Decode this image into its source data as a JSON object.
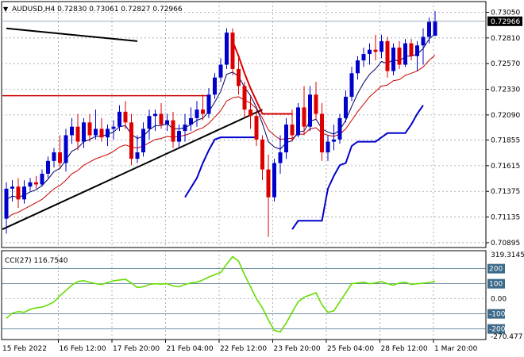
{
  "header": {
    "symbol_line": "AUDUSD,H4  0.72830 0.73061 0.72827 0.72966",
    "cci_label": "CCI(27) 116.7540"
  },
  "colors": {
    "bull": "#0000cc",
    "bear": "#dd0000",
    "grid": "#9aa0a6",
    "ma_fast": "#000066",
    "ma_slow": "#cc0000",
    "sar_blue": "#0000cc",
    "sar_red": "#dd0000",
    "trendline": "#000000",
    "horizontal_line": "#cc0000",
    "cci_line": "#66dd00",
    "cci_level": "#3d6a8a",
    "price_tag_bg": "#000000",
    "price_tag_text": "#ffffff"
  },
  "chart_data": [
    {
      "type": "candlestick",
      "title": "AUDUSD,H4",
      "ylim": [
        0.7085,
        0.7315
      ],
      "y_ticks": [
        0.7305,
        0.7281,
        0.7257,
        0.7233,
        0.7209,
        0.71855,
        0.71615,
        0.71375,
        0.71135,
        0.70895
      ],
      "y_tick_labels": [
        "0.73050",
        "0.72810",
        "0.72570",
        "0.72330",
        "0.72090",
        "0.71855",
        "0.71615",
        "0.71375",
        "0.71135",
        "0.70895"
      ],
      "current_price_label": "0.72966",
      "current_price": 0.72966,
      "x_labels": [
        "15 Feb 2022",
        "16 Feb 12:00",
        "17 Feb 20:00",
        "21 Feb 04:00",
        "22 Feb 12:00",
        "23 Feb 20:00",
        "25 Feb 04:00",
        "28 Feb 12:00",
        "1 Mar 20:00"
      ],
      "x_label_bars": [
        0,
        9,
        18,
        27,
        36,
        45,
        54,
        63,
        72
      ],
      "grid": true,
      "candles": [
        {
          "o": 0.7112,
          "h": 0.7146,
          "l": 0.7098,
          "c": 0.714
        },
        {
          "o": 0.714,
          "h": 0.7148,
          "l": 0.7128,
          "c": 0.7142
        },
        {
          "o": 0.7142,
          "h": 0.715,
          "l": 0.7122,
          "c": 0.713
        },
        {
          "o": 0.713,
          "h": 0.7148,
          "l": 0.7126,
          "c": 0.7142
        },
        {
          "o": 0.7142,
          "h": 0.715,
          "l": 0.7138,
          "c": 0.7146
        },
        {
          "o": 0.7146,
          "h": 0.7152,
          "l": 0.714,
          "c": 0.7144
        },
        {
          "o": 0.7144,
          "h": 0.7158,
          "l": 0.7142,
          "c": 0.7154
        },
        {
          "o": 0.7154,
          "h": 0.717,
          "l": 0.715,
          "c": 0.7166
        },
        {
          "o": 0.7166,
          "h": 0.7178,
          "l": 0.716,
          "c": 0.7174
        },
        {
          "o": 0.7174,
          "h": 0.719,
          "l": 0.7158,
          "c": 0.7164
        },
        {
          "o": 0.7164,
          "h": 0.7196,
          "l": 0.7156,
          "c": 0.719
        },
        {
          "o": 0.719,
          "h": 0.7206,
          "l": 0.7182,
          "c": 0.7198
        },
        {
          "o": 0.7198,
          "h": 0.721,
          "l": 0.7176,
          "c": 0.7184
        },
        {
          "o": 0.7184,
          "h": 0.7206,
          "l": 0.7178,
          "c": 0.7202
        },
        {
          "o": 0.7202,
          "h": 0.721,
          "l": 0.7184,
          "c": 0.719
        },
        {
          "o": 0.719,
          "h": 0.7214,
          "l": 0.7186,
          "c": 0.7196
        },
        {
          "o": 0.7196,
          "h": 0.7206,
          "l": 0.7184,
          "c": 0.7188
        },
        {
          "o": 0.7188,
          "h": 0.72,
          "l": 0.718,
          "c": 0.7196
        },
        {
          "o": 0.7196,
          "h": 0.7204,
          "l": 0.7186,
          "c": 0.7198
        },
        {
          "o": 0.7198,
          "h": 0.7218,
          "l": 0.7194,
          "c": 0.7212
        },
        {
          "o": 0.7212,
          "h": 0.7222,
          "l": 0.7196,
          "c": 0.7202
        },
        {
          "o": 0.7202,
          "h": 0.721,
          "l": 0.7162,
          "c": 0.7168
        },
        {
          "o": 0.7168,
          "h": 0.719,
          "l": 0.7164,
          "c": 0.7174
        },
        {
          "o": 0.7174,
          "h": 0.7202,
          "l": 0.717,
          "c": 0.7196
        },
        {
          "o": 0.7196,
          "h": 0.7214,
          "l": 0.7186,
          "c": 0.7208
        },
        {
          "o": 0.7208,
          "h": 0.7214,
          "l": 0.7194,
          "c": 0.721
        },
        {
          "o": 0.721,
          "h": 0.722,
          "l": 0.7196,
          "c": 0.72
        },
        {
          "o": 0.72,
          "h": 0.721,
          "l": 0.7194,
          "c": 0.7204
        },
        {
          "o": 0.7204,
          "h": 0.7212,
          "l": 0.7178,
          "c": 0.7184
        },
        {
          "o": 0.7184,
          "h": 0.72,
          "l": 0.7178,
          "c": 0.7194
        },
        {
          "o": 0.7194,
          "h": 0.721,
          "l": 0.7184,
          "c": 0.72
        },
        {
          "o": 0.72,
          "h": 0.7216,
          "l": 0.7194,
          "c": 0.7206
        },
        {
          "o": 0.7206,
          "h": 0.7222,
          "l": 0.7198,
          "c": 0.7214
        },
        {
          "o": 0.7214,
          "h": 0.7228,
          "l": 0.7204,
          "c": 0.721
        },
        {
          "o": 0.721,
          "h": 0.7234,
          "l": 0.7206,
          "c": 0.7228
        },
        {
          "o": 0.7228,
          "h": 0.7248,
          "l": 0.7224,
          "c": 0.7244
        },
        {
          "o": 0.7244,
          "h": 0.7262,
          "l": 0.724,
          "c": 0.7256
        },
        {
          "o": 0.7256,
          "h": 0.729,
          "l": 0.7252,
          "c": 0.7286
        },
        {
          "o": 0.7286,
          "h": 0.729,
          "l": 0.7246,
          "c": 0.7252
        },
        {
          "o": 0.7252,
          "h": 0.7262,
          "l": 0.7228,
          "c": 0.7236
        },
        {
          "o": 0.7236,
          "h": 0.724,
          "l": 0.7206,
          "c": 0.7214
        },
        {
          "o": 0.7214,
          "h": 0.7226,
          "l": 0.7196,
          "c": 0.7208
        },
        {
          "o": 0.7208,
          "h": 0.7214,
          "l": 0.718,
          "c": 0.7186
        },
        {
          "o": 0.7186,
          "h": 0.719,
          "l": 0.7148,
          "c": 0.7158
        },
        {
          "o": 0.7158,
          "h": 0.7172,
          "l": 0.7095,
          "c": 0.7132
        },
        {
          "o": 0.7132,
          "h": 0.7168,
          "l": 0.7128,
          "c": 0.7164
        },
        {
          "o": 0.7164,
          "h": 0.719,
          "l": 0.7154,
          "c": 0.7174
        },
        {
          "o": 0.7174,
          "h": 0.7206,
          "l": 0.7168,
          "c": 0.72
        },
        {
          "o": 0.72,
          "h": 0.7214,
          "l": 0.7184,
          "c": 0.719
        },
        {
          "o": 0.719,
          "h": 0.722,
          "l": 0.7188,
          "c": 0.7216
        },
        {
          "o": 0.7216,
          "h": 0.7236,
          "l": 0.719,
          "c": 0.7198
        },
        {
          "o": 0.7198,
          "h": 0.7236,
          "l": 0.7194,
          "c": 0.7228
        },
        {
          "o": 0.7228,
          "h": 0.724,
          "l": 0.7204,
          "c": 0.721
        },
        {
          "o": 0.721,
          "h": 0.722,
          "l": 0.7166,
          "c": 0.7174
        },
        {
          "o": 0.7174,
          "h": 0.719,
          "l": 0.7166,
          "c": 0.7184
        },
        {
          "o": 0.7184,
          "h": 0.72,
          "l": 0.7176,
          "c": 0.7186
        },
        {
          "o": 0.7186,
          "h": 0.721,
          "l": 0.7182,
          "c": 0.7206
        },
        {
          "o": 0.7206,
          "h": 0.7232,
          "l": 0.7202,
          "c": 0.7226
        },
        {
          "o": 0.7226,
          "h": 0.7254,
          "l": 0.7222,
          "c": 0.7248
        },
        {
          "o": 0.7248,
          "h": 0.7264,
          "l": 0.7242,
          "c": 0.726
        },
        {
          "o": 0.726,
          "h": 0.7272,
          "l": 0.7254,
          "c": 0.7266
        },
        {
          "o": 0.7266,
          "h": 0.7276,
          "l": 0.7256,
          "c": 0.727
        },
        {
          "o": 0.727,
          "h": 0.7284,
          "l": 0.726,
          "c": 0.7268
        },
        {
          "o": 0.7268,
          "h": 0.7284,
          "l": 0.7262,
          "c": 0.7278
        },
        {
          "o": 0.7278,
          "h": 0.7282,
          "l": 0.7244,
          "c": 0.725
        },
        {
          "o": 0.725,
          "h": 0.7276,
          "l": 0.7246,
          "c": 0.7272
        },
        {
          "o": 0.7272,
          "h": 0.7278,
          "l": 0.7252,
          "c": 0.7256
        },
        {
          "o": 0.7256,
          "h": 0.728,
          "l": 0.7254,
          "c": 0.7276
        },
        {
          "o": 0.7276,
          "h": 0.728,
          "l": 0.726,
          "c": 0.7264
        },
        {
          "o": 0.7264,
          "h": 0.7278,
          "l": 0.725,
          "c": 0.7274
        },
        {
          "o": 0.7274,
          "h": 0.729,
          "l": 0.7256,
          "c": 0.7282
        },
        {
          "o": 0.7282,
          "h": 0.73,
          "l": 0.7276,
          "c": 0.7296
        },
        {
          "o": 0.7283,
          "h": 0.7306,
          "l": 0.7283,
          "c": 0.7297
        }
      ],
      "ma_fast": [
        0.713,
        0.7133,
        0.7132,
        0.7134,
        0.7137,
        0.7139,
        0.7143,
        0.7149,
        0.7156,
        0.7159,
        0.7167,
        0.7175,
        0.7178,
        0.7184,
        0.7186,
        0.7189,
        0.7189,
        0.7191,
        0.7193,
        0.7198,
        0.7199,
        0.7191,
        0.7187,
        0.7189,
        0.7195,
        0.7199,
        0.7199,
        0.7201,
        0.7196,
        0.7196,
        0.7197,
        0.72,
        0.7204,
        0.7206,
        0.7212,
        0.7221,
        0.7231,
        0.7247,
        0.7249,
        0.7245,
        0.7235,
        0.7227,
        0.7216,
        0.7201,
        0.7184,
        0.7179,
        0.7177,
        0.7183,
        0.7185,
        0.7193,
        0.7194,
        0.7203,
        0.7205,
        0.7196,
        0.7193,
        0.7191,
        0.7195,
        0.7204,
        0.7217,
        0.7229,
        0.7239,
        0.7247,
        0.7252,
        0.7259,
        0.7257,
        0.7261,
        0.7259,
        0.7264,
        0.7264,
        0.7266,
        0.7271,
        0.728,
        0.7285
      ],
      "ma_slow": [
        0.7112,
        0.7116,
        0.7118,
        0.7121,
        0.7124,
        0.7127,
        0.713,
        0.7135,
        0.714,
        0.7143,
        0.7148,
        0.7154,
        0.7157,
        0.7162,
        0.7165,
        0.7168,
        0.717,
        0.7172,
        0.7175,
        0.7179,
        0.7181,
        0.7179,
        0.7178,
        0.718,
        0.7183,
        0.7186,
        0.7187,
        0.7189,
        0.7188,
        0.7189,
        0.719,
        0.7192,
        0.7195,
        0.7197,
        0.7201,
        0.7207,
        0.7213,
        0.7222,
        0.7225,
        0.7226,
        0.7223,
        0.722,
        0.7215,
        0.7206,
        0.7195,
        0.719,
        0.7186,
        0.7187,
        0.7187,
        0.7191,
        0.7191,
        0.7196,
        0.7197,
        0.7192,
        0.719,
        0.7189,
        0.7191,
        0.7196,
        0.7204,
        0.7212,
        0.7219,
        0.7226,
        0.7231,
        0.7236,
        0.7237,
        0.7241,
        0.7242,
        0.7246,
        0.7248,
        0.725,
        0.7254,
        0.726,
        0.7265
      ],
      "sar_segments": [
        {
          "color": "blue",
          "points": [
            [
              30,
              0.7132
            ],
            [
              32,
              0.715
            ],
            [
              33,
              0.7164
            ],
            [
              34,
              0.7176
            ],
            [
              35,
              0.7186
            ],
            [
              36,
              0.7188
            ],
            [
              39,
              0.7188
            ],
            [
              40,
              0.7188
            ],
            [
              41,
              0.7188
            ],
            [
              42,
              0.7188
            ]
          ]
        },
        {
          "color": "red",
          "points": [
            [
              38,
              0.7278
            ],
            [
              39,
              0.7264
            ],
            [
              40,
              0.7248
            ],
            [
              41,
              0.7234
            ],
            [
              42,
              0.7222
            ],
            [
              43,
              0.721
            ],
            [
              44,
              0.721
            ],
            [
              46,
              0.721
            ],
            [
              47,
              0.721
            ],
            [
              48,
              0.721
            ]
          ]
        },
        {
          "color": "blue",
          "points": [
            [
              48,
              0.7102
            ],
            [
              49,
              0.711
            ],
            [
              50,
              0.711
            ],
            [
              51,
              0.711
            ],
            [
              52,
              0.711
            ],
            [
              53,
              0.711
            ],
            [
              54,
              0.714
            ],
            [
              55,
              0.7152
            ],
            [
              56,
              0.7162
            ],
            [
              57,
              0.7164
            ],
            [
              58,
              0.718
            ],
            [
              59,
              0.7184
            ],
            [
              60,
              0.7184
            ],
            [
              61,
              0.7184
            ],
            [
              62,
              0.7184
            ],
            [
              63,
              0.7188
            ],
            [
              64,
              0.7192
            ],
            [
              65,
              0.7192
            ],
            [
              66,
              0.7192
            ],
            [
              67,
              0.7192
            ],
            [
              68,
              0.72
            ],
            [
              69,
              0.721
            ],
            [
              70,
              0.7218
            ]
          ]
        }
      ],
      "trendline": [
        [
          0,
          0.7102
        ],
        [
          43,
          0.7214
        ]
      ],
      "resistance_line": {
        "value": 0.7227,
        "from_bar": 0,
        "to_bar": 34
      },
      "short_line": [
        [
          0,
          0.729
        ],
        [
          22,
          0.7278
        ]
      ]
    },
    {
      "type": "line",
      "title": "CCI(27) 116.7540",
      "ylim": [
        -270.477,
        319.3145
      ],
      "y_ticks": [
        319.3145,
        200,
        100,
        0.0,
        -100,
        -200,
        -270.477
      ],
      "y_tick_labels": [
        "319.3145",
        "200",
        "100",
        "0.00",
        "-100",
        "-200",
        "-270.477"
      ],
      "boxed_levels": [
        200,
        100,
        -100,
        -200
      ],
      "levels": [
        200,
        100,
        -100,
        -200
      ],
      "series": [
        {
          "values": [
            -130,
            -95,
            -85,
            -90,
            -70,
            -60,
            -55,
            -40,
            -20,
            20,
            55,
            90,
            115,
            120,
            110,
            100,
            95,
            108,
            120,
            125,
            130,
            105,
            75,
            80,
            95,
            100,
            98,
            100,
            85,
            80,
            95,
            105,
            110,
            125,
            145,
            160,
            175,
            230,
            280,
            250,
            160,
            80,
            0,
            -60,
            -140,
            -210,
            -220,
            -160,
            -90,
            -20,
            10,
            25,
            40,
            -40,
            -90,
            -80,
            -20,
            40,
            100,
            105,
            110,
            100,
            105,
            115,
            100,
            90,
            105,
            110,
            95,
            100,
            103,
            108,
            116.754
          ]
        }
      ]
    }
  ]
}
